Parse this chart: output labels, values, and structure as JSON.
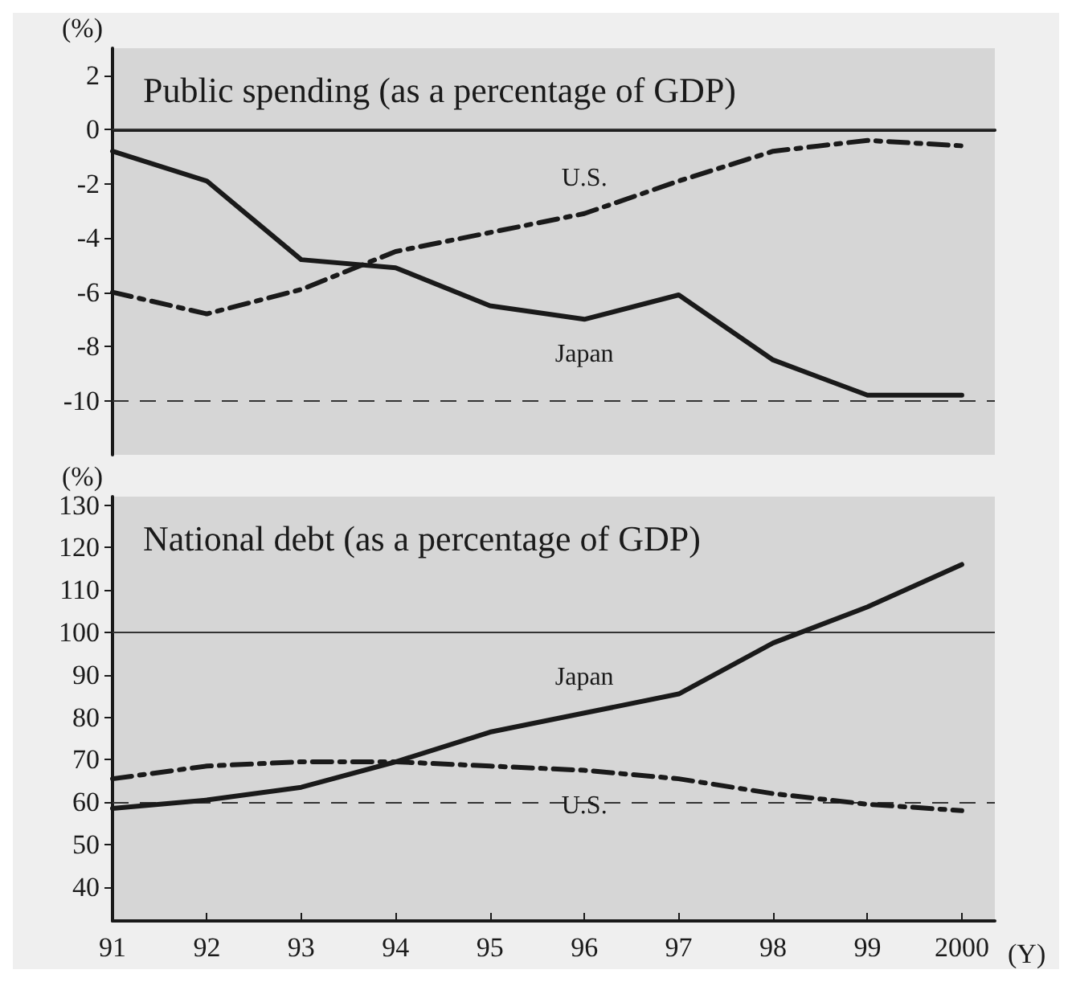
{
  "chart_data": [
    {
      "type": "line",
      "title": "Public spending (as a percentage of GDP)",
      "ylabel": "(%)",
      "x": [
        1991,
        1992,
        1993,
        1994,
        1995,
        1996,
        1997,
        1998,
        1999,
        2000
      ],
      "xlim": [
        1991,
        2000.35
      ],
      "ylim": [
        -12,
        3
      ],
      "yticks": [
        -10,
        -8,
        -6,
        -4,
        -2,
        0,
        2
      ],
      "tick_labels": "y",
      "grid": false,
      "legend": false,
      "series": [
        {
          "name": "Japan",
          "color": "#1a1a1a",
          "line_style": "solid",
          "values": [
            -0.8,
            -1.9,
            -4.8,
            -5.1,
            -6.5,
            -7.0,
            -6.1,
            -8.5,
            -9.8,
            -9.8
          ]
        },
        {
          "name": "U.S.",
          "color": "#1a1a1a",
          "line_style": "dashed",
          "values": [
            -6.0,
            -6.8,
            -5.9,
            -4.5,
            -3.8,
            -3.1,
            -1.9,
            -0.8,
            -0.4,
            -0.6
          ]
        }
      ],
      "ref_lines": [
        {
          "axis": "y",
          "value": 0,
          "color": "#333333",
          "line_style": "solid"
        },
        {
          "axis": "y",
          "value": -10,
          "color": "#333333",
          "line_style": "dashed"
        }
      ]
    },
    {
      "type": "line",
      "title": "National debt (as a percentage of GDP)",
      "ylabel": "(%)",
      "xlabel": "(Y)",
      "x": [
        1991,
        1992,
        1993,
        1994,
        1995,
        1996,
        1997,
        1998,
        1999,
        2000
      ],
      "xlim": [
        1991,
        2000.35
      ],
      "xticks": [
        {
          "value": 1991,
          "label": "91"
        },
        {
          "value": 1992,
          "label": "92"
        },
        {
          "value": 1993,
          "label": "93"
        },
        {
          "value": 1994,
          "label": "94"
        },
        {
          "value": 1995,
          "label": "95"
        },
        {
          "value": 1996,
          "label": "96"
        },
        {
          "value": 1997,
          "label": "97"
        },
        {
          "value": 1998,
          "label": "98"
        },
        {
          "value": 1999,
          "label": "99"
        },
        {
          "value": 2000,
          "label": "2000"
        }
      ],
      "ylim": [
        32,
        132
      ],
      "yticks": [
        40,
        50,
        60,
        70,
        80,
        90,
        100,
        110,
        120,
        130
      ],
      "grid": false,
      "legend": false,
      "series": [
        {
          "name": "Japan",
          "color": "#1a1a1a",
          "line_style": "solid",
          "values": [
            58.5,
            60.5,
            63.5,
            69.5,
            76.5,
            81,
            85.5,
            97.5,
            106,
            116
          ]
        },
        {
          "name": "U.S.",
          "color": "#1a1a1a",
          "line_style": "dashed",
          "values": [
            65.5,
            68.5,
            69.5,
            69.5,
            68.5,
            67.5,
            65.5,
            62,
            59.5,
            58
          ]
        }
      ],
      "ref_lines": [
        {
          "axis": "y",
          "value": 100,
          "color": "#333333",
          "line_style": "solid"
        },
        {
          "axis": "y",
          "value": 60,
          "color": "#333333",
          "line_style": "dashed"
        }
      ]
    }
  ]
}
